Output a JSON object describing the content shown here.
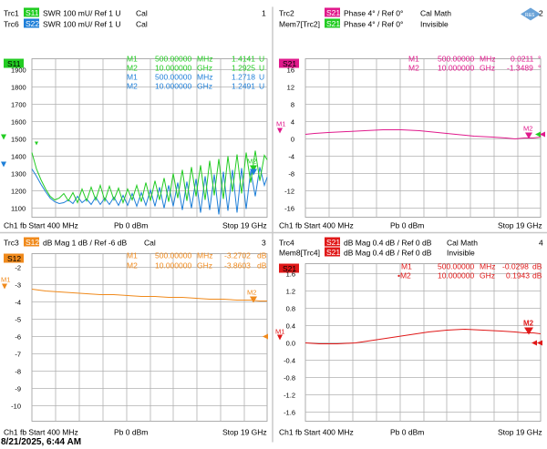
{
  "timestamp": "8/21/2025, 6:44 AM",
  "logo": "R&S",
  "colors": {
    "green": "#22cc22",
    "blue": "#1e7fd8",
    "magenta": "#e01a8c",
    "orange": "#f08a1c",
    "red": "#e01818",
    "grid": "#b0b0b0"
  },
  "windows": [
    {
      "id": "w1",
      "number": "1",
      "traces": [
        {
          "name": "Trc1",
          "param": "S11",
          "desc": "SWR  100 mU/  Ref 1 U",
          "state": "Cal",
          "color": "#22cc22"
        },
        {
          "name": "Trc6",
          "param": "S22",
          "desc": "SWR  100 mU/  Ref 1 U",
          "state": "Cal",
          "color": "#1e7fd8"
        }
      ],
      "active_param": "S11",
      "y_ticks": [
        "1900",
        "1800",
        "1700",
        "1600",
        "1500",
        "1400",
        "1300",
        "1200",
        "1100"
      ],
      "markers": [
        {
          "label": "M1",
          "freq": "500.00000",
          "unit": "MHz",
          "value": "1.4141",
          "vunit": "U",
          "color": "#22cc22"
        },
        {
          "label": "M2",
          "freq": "10.000000",
          "unit": "GHz",
          "value": "1.2925",
          "vunit": "U",
          "color": "#22cc22"
        },
        {
          "label": "M1",
          "freq": "500.00000",
          "unit": "MHz",
          "value": "1.2718",
          "vunit": "U",
          "color": "#1e7fd8"
        },
        {
          "label": "M2",
          "freq": "10.000000",
          "unit": "GHz",
          "value": "1.2491",
          "vunit": "U",
          "color": "#1e7fd8"
        }
      ],
      "trace_markers": [
        "M1",
        "M2"
      ],
      "bottom": {
        "left": "Ch1  fb  Start  400 MHz",
        "mid": "Pb  0 dBm",
        "right": "Stop  19 GHz"
      }
    },
    {
      "id": "w2",
      "number": "2",
      "traces": [
        {
          "name": "Trc2",
          "param": "S21",
          "desc": "Phase  4° /  Ref 0°",
          "state": "Cal Math",
          "color": "#e01a8c"
        },
        {
          "name": "Mem7[Trc2]",
          "param": "S21",
          "desc": "Phase  4° /  Ref 0°",
          "state": "Invisible",
          "color": "#22cc22"
        }
      ],
      "active_param": "S21",
      "y_ticks": [
        "16",
        "12",
        "8",
        "4",
        "0",
        "-4",
        "-8",
        "-12",
        "-16"
      ],
      "markers": [
        {
          "label": "M1",
          "freq": "500.00000",
          "unit": "MHz",
          "value": "0.0211",
          "vunit": "°",
          "color": "#e01a8c"
        },
        {
          "label": "M2",
          "freq": "10.000000",
          "unit": "GHz",
          "value": "-1.3489",
          "vunit": "°",
          "color": "#e01a8c"
        }
      ],
      "trace_markers": [
        "M1",
        "M2"
      ],
      "bottom": {
        "left": "Ch1  fb  Start  400 MHz",
        "mid": "Pb  0 dBm",
        "right": "Stop  19 GHz"
      }
    },
    {
      "id": "w3",
      "number": "3",
      "traces": [
        {
          "name": "Trc3",
          "param": "S12",
          "desc": "dB Mag  1 dB /  Ref -6 dB",
          "state": "Cal",
          "color": "#f08a1c"
        }
      ],
      "active_param": "S12",
      "y_ticks": [
        "-2",
        "-3",
        "-4",
        "-5",
        "-6",
        "-7",
        "-8",
        "-9",
        "-10"
      ],
      "markers": [
        {
          "label": "M1",
          "freq": "500.00000",
          "unit": "MHz",
          "value": "-3.2702",
          "vunit": "dB",
          "color": "#f08a1c"
        },
        {
          "label": "M2",
          "freq": "10.000000",
          "unit": "GHz",
          "value": "-3.8603",
          "vunit": "dB",
          "color": "#f08a1c"
        }
      ],
      "trace_markers": [
        "M1",
        "M2"
      ],
      "bottom": {
        "left": "Ch1  fb  Start  400 MHz",
        "mid": "Pb  0 dBm",
        "right": "Stop  19 GHz"
      }
    },
    {
      "id": "w4",
      "number": "4",
      "traces": [
        {
          "name": "Trc4",
          "param": "S21",
          "desc": "dB Mag  0.4 dB /  Ref 0 dB",
          "state": "Cal Math",
          "color": "#e01818"
        },
        {
          "name": "Mem8[Trc4]",
          "param": "S21",
          "desc": "dB Mag  0.4 dB /  Ref 0 dB",
          "state": "Invisible",
          "color": "#e01818"
        }
      ],
      "active_param": "S21",
      "y_ticks": [
        "1.6",
        "1.2",
        "0.8",
        "0.4",
        "0.0",
        "-0.4",
        "-0.8",
        "-1.2",
        "-1.6"
      ],
      "markers": [
        {
          "label": "M1",
          "freq": "500.00000",
          "unit": "MHz",
          "value": "-0.0298",
          "vunit": "dB",
          "color": "#e01818"
        },
        {
          "label": "•M2",
          "freq": "10.000000",
          "unit": "GHz",
          "value": "0.1943",
          "vunit": "dB",
          "color": "#e01818"
        }
      ],
      "trace_markers": [
        "M1",
        "M2"
      ],
      "bottom": {
        "left": "Ch1  fb  Start  400 MHz",
        "mid": "Pb  0 dBm",
        "right": "Stop  19 GHz"
      }
    }
  ]
}
